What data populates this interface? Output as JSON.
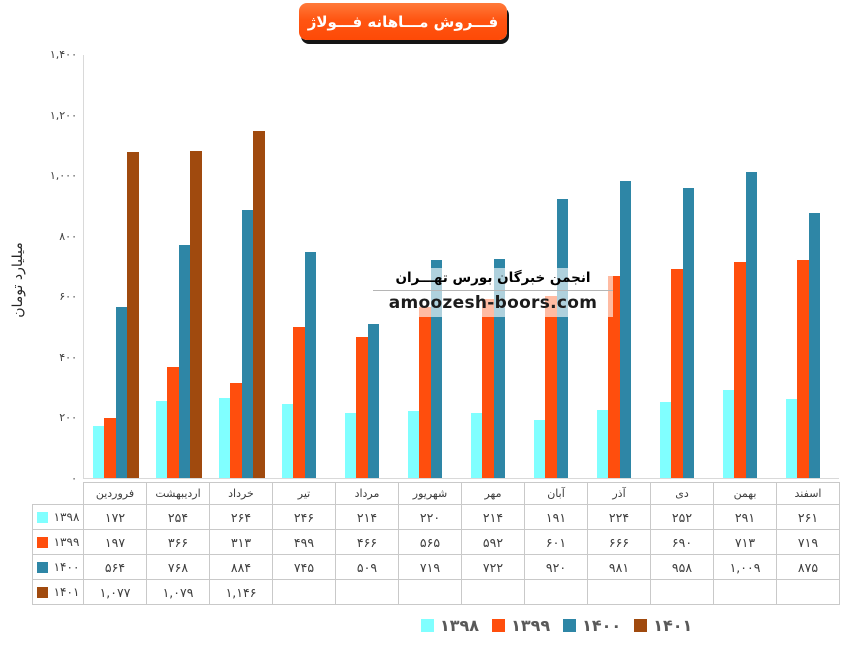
{
  "header": {
    "title": "فـــروش مـــاهانه فـــولاژ"
  },
  "y_axis": {
    "title": "میلیارد تومان"
  },
  "watermark": {
    "line1": "انجمن خبرگان بورس تهـــران",
    "line2": "amoozesh-boors.com"
  },
  "colors": {
    "banner": "#FF4E0D",
    "banner_shadow": "#151515",
    "series_1398": "#80FFFF",
    "series_1399": "#FF4E0D",
    "series_1400": "#2E86A6",
    "series_1401": "#A04A0E",
    "table_border": "#C9C9C9",
    "legend_text": "#595959"
  },
  "chart_data": {
    "type": "bar",
    "title": "فروش ماهانه فولاژ",
    "ylabel": "میلیارد تومان",
    "ylim": [
      0,
      1400
    ],
    "ytick_step": 200,
    "yticks": [
      0,
      200,
      400,
      600,
      800,
      1000,
      1200,
      1400
    ],
    "grid": false,
    "legend_position": "bottom",
    "categories": [
      "فروردین",
      "اردیبهشت",
      "خرداد",
      "تیر",
      "مرداد",
      "شهریور",
      "مهر",
      "آبان",
      "آذر",
      "دی",
      "بهمن",
      "اسفند"
    ],
    "series": [
      {
        "name": "۱۳۹۸",
        "color": "#80FFFF",
        "values": [
          172,
          254,
          264,
          246,
          214,
          220,
          214,
          191,
          224,
          252,
          291,
          261
        ]
      },
      {
        "name": "۱۳۹۹",
        "color": "#FF4E0D",
        "values": [
          197,
          366,
          313,
          499,
          466,
          565,
          592,
          601,
          666,
          690,
          713,
          719
        ]
      },
      {
        "name": "۱۴۰۰",
        "color": "#2E86A6",
        "values": [
          564,
          768,
          884,
          745,
          509,
          719,
          722,
          920,
          981,
          958,
          1009,
          875
        ]
      },
      {
        "name": "۱۴۰۱",
        "color": "#A04A0E",
        "values": [
          1077,
          1079,
          1146,
          null,
          null,
          null,
          null,
          null,
          null,
          null,
          null,
          null
        ]
      }
    ]
  }
}
